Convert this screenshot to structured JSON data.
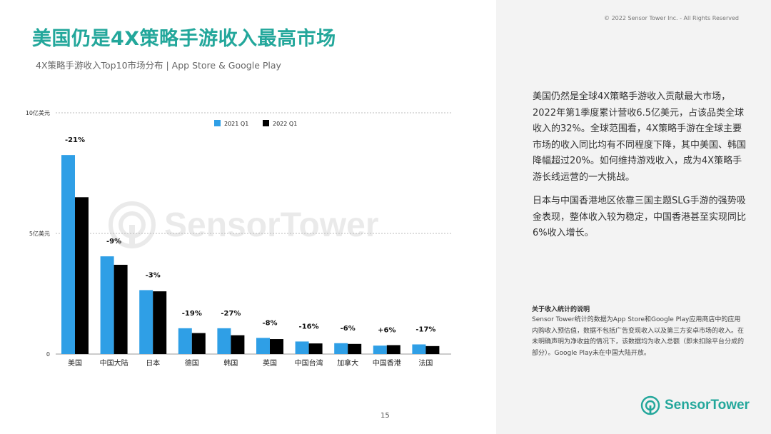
{
  "header": {
    "title": "美国仍是4X策略手游收入最高市场",
    "subtitle": "4X策略手游收入Top10市场分布 | App Store & Google Play",
    "copyright": "© 2022 Sensor Tower Inc. - All Rights Reserved"
  },
  "commentary": {
    "paragraph1": "美国仍然是全球4X策略手游收入贡献最大市场，2022年第1季度累计营收6.5亿美元，占该品类全球收入的32%。全球范围看，4X策略手游在全球主要市场的收入同比均有不同程度下降，其中美国、韩国降幅超过20%。如何维持游戏收入，成为4X策略手游长线运营的一大挑战。",
    "paragraph2": "日本与中国香港地区依靠三国主题SLG手游的强势吸金表现，整体收入较为稳定，中国香港甚至实现同比6%收入增长。"
  },
  "note": {
    "title": "关于收入统计的说明",
    "body": "Sensor Tower统计的数据为App Store和Google Play应用商店中的应用内购收入预估值，数据不包括广告变现收入以及第三方安卓市场的收入。在未明确声明为净收益的情况下，该数据均为收入总额（即未扣除平台分成的部分）。Google Play未在中国大陆开放。"
  },
  "footer": {
    "page_number": "15",
    "logo_text": "SensorTower"
  },
  "watermark": {
    "text": "SensorTower"
  },
  "colors": {
    "brand": "#23a79b",
    "series_2021": "#2f9fe6",
    "series_2022": "#000000"
  },
  "icons": {
    "logo": "sensor-tower-logo-icon"
  },
  "chart_data": {
    "type": "bar",
    "categories": [
      "美国",
      "中国大陆",
      "日本",
      "德国",
      "韩国",
      "英国",
      "中国台湾",
      "加拿大",
      "中国香港",
      "法国"
    ],
    "series": [
      {
        "name": "2021 Q1",
        "values": [
          8.25,
          4.05,
          2.65,
          1.07,
          1.07,
          0.67,
          0.52,
          0.45,
          0.35,
          0.4
        ]
      },
      {
        "name": "2022 Q1",
        "values": [
          6.5,
          3.7,
          2.6,
          0.87,
          0.78,
          0.62,
          0.44,
          0.42,
          0.37,
          0.33
        ]
      }
    ],
    "change_labels": [
      "-21%",
      "-9%",
      "-3%",
      "-19%",
      "-27%",
      "-8%",
      "-16%",
      "-6%",
      "+6%",
      "-17%"
    ],
    "y_ticks": [
      {
        "value": 0,
        "label": "0"
      },
      {
        "value": 5,
        "label": "5亿美元"
      },
      {
        "value": 10,
        "label": "10亿美元"
      }
    ],
    "ylim": [
      0,
      10
    ],
    "grid": true,
    "legend_position": "top"
  }
}
